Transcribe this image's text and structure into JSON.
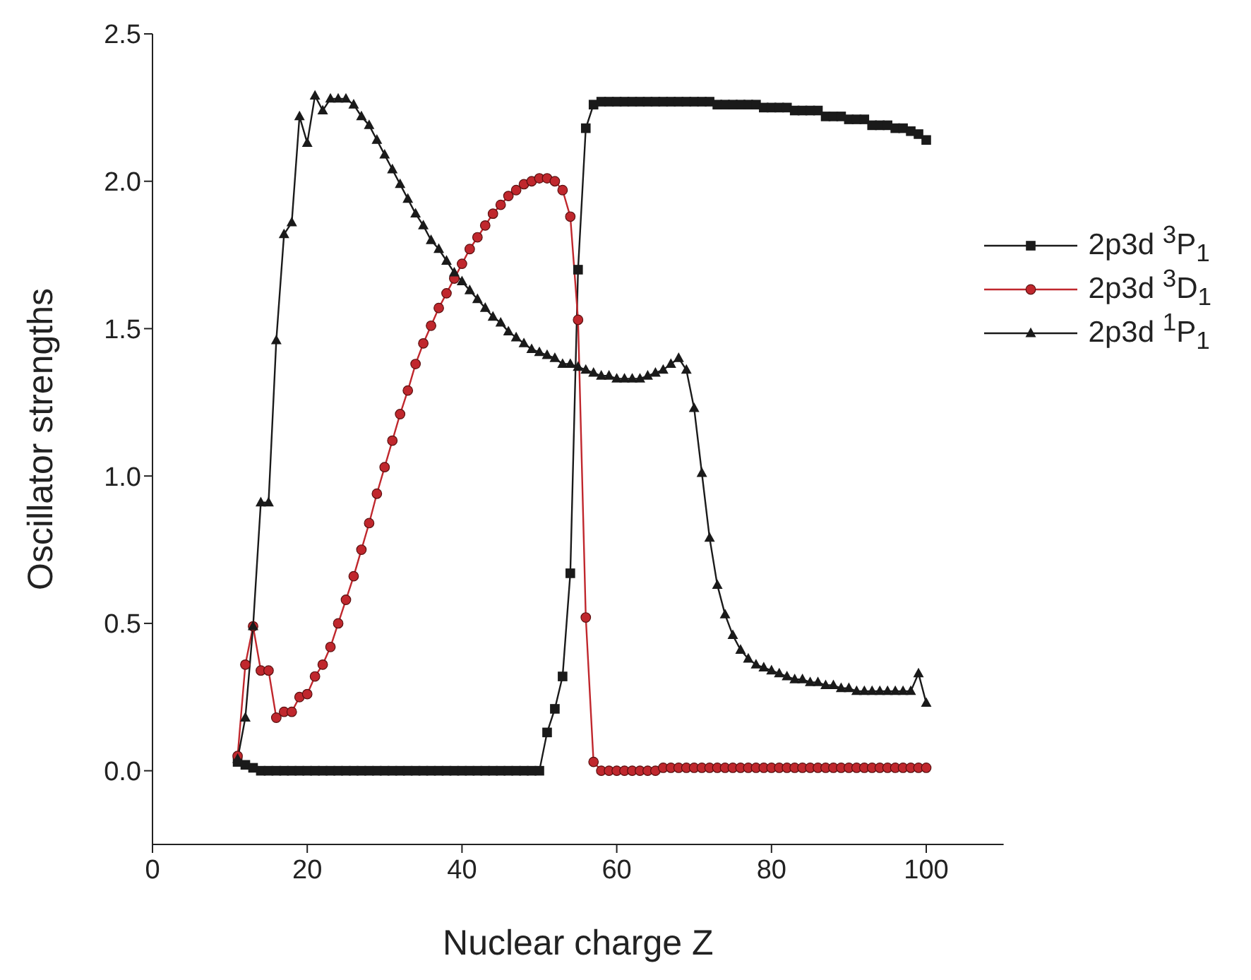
{
  "chart_data": {
    "type": "line",
    "xlabel": "Nuclear charge Z",
    "ylabel": "Oscillator strengths",
    "x": [
      11,
      12,
      13,
      14,
      15,
      16,
      17,
      18,
      19,
      20,
      21,
      22,
      23,
      24,
      25,
      26,
      27,
      28,
      29,
      30,
      31,
      32,
      33,
      34,
      35,
      36,
      37,
      38,
      39,
      40,
      41,
      42,
      43,
      44,
      45,
      46,
      47,
      48,
      49,
      50,
      51,
      52,
      53,
      54,
      55,
      56,
      57,
      58,
      59,
      60,
      61,
      62,
      63,
      64,
      65,
      66,
      67,
      68,
      69,
      70,
      71,
      72,
      73,
      74,
      75,
      76,
      77,
      78,
      79,
      80,
      81,
      82,
      83,
      84,
      85,
      86,
      87,
      88,
      89,
      90,
      91,
      92,
      93,
      94,
      95,
      96,
      97,
      98,
      99,
      100
    ],
    "series": [
      {
        "name": "2p3d $^{3}$P$_{1}$",
        "color": "#1a1a1a",
        "marker": "square",
        "values": [
          0.03,
          0.02,
          0.01,
          0,
          0,
          0,
          0,
          0,
          0,
          0,
          0,
          0,
          0,
          0,
          0,
          0,
          0,
          0,
          0,
          0,
          0,
          0,
          0,
          0,
          0,
          0,
          0,
          0,
          0,
          0,
          0,
          0,
          0,
          0,
          0,
          0,
          0,
          0,
          0,
          0,
          0.13,
          0.21,
          0.32,
          0.67,
          1.7,
          2.18,
          2.26,
          2.27,
          2.27,
          2.27,
          2.27,
          2.27,
          2.27,
          2.27,
          2.27,
          2.27,
          2.27,
          2.27,
          2.27,
          2.27,
          2.27,
          2.27,
          2.26,
          2.26,
          2.26,
          2.26,
          2.26,
          2.26,
          2.25,
          2.25,
          2.25,
          2.25,
          2.24,
          2.24,
          2.24,
          2.24,
          2.22,
          2.22,
          2.22,
          2.21,
          2.21,
          2.21,
          2.19,
          2.19,
          2.19,
          2.18,
          2.18,
          2.17,
          2.16,
          2.14
        ]
      },
      {
        "name": "2p3d $^{3}$D$_{1}$",
        "color": "#c0272d",
        "marker": "circle",
        "values": [
          0.05,
          0.36,
          0.49,
          0.34,
          0.34,
          0.18,
          0.2,
          0.2,
          0.25,
          0.26,
          0.32,
          0.36,
          0.42,
          0.5,
          0.58,
          0.66,
          0.75,
          0.84,
          0.94,
          1.03,
          1.12,
          1.21,
          1.29,
          1.38,
          1.45,
          1.51,
          1.57,
          1.62,
          1.67,
          1.72,
          1.77,
          1.81,
          1.85,
          1.89,
          1.92,
          1.95,
          1.97,
          1.99,
          2,
          2.01,
          2.01,
          2,
          1.97,
          1.88,
          1.53,
          0.52,
          0.03,
          0,
          0,
          0,
          0,
          0,
          0,
          0,
          0,
          0.01,
          0.01,
          0.01,
          0.01,
          0.01,
          0.01,
          0.01,
          0.01,
          0.01,
          0.01,
          0.01,
          0.01,
          0.01,
          0.01,
          0.01,
          0.01,
          0.01,
          0.01,
          0.01,
          0.01,
          0.01,
          0.01,
          0.01,
          0.01,
          0.01,
          0.01,
          0.01,
          0.01,
          0.01,
          0.01,
          0.01,
          0.01,
          0.01,
          0.01,
          0.01
        ]
      },
      {
        "name": "2p3d $^{1}$P$_{1}$",
        "color": "#1a1a1a",
        "marker": "triangle",
        "values": [
          0.04,
          0.18,
          0.49,
          0.91,
          0.91,
          1.46,
          1.82,
          1.86,
          2.22,
          2.13,
          2.29,
          2.24,
          2.28,
          2.28,
          2.28,
          2.26,
          2.22,
          2.19,
          2.14,
          2.09,
          2.04,
          1.99,
          1.94,
          1.89,
          1.85,
          1.8,
          1.77,
          1.73,
          1.69,
          1.66,
          1.63,
          1.6,
          1.57,
          1.54,
          1.52,
          1.49,
          1.47,
          1.45,
          1.43,
          1.42,
          1.41,
          1.4,
          1.38,
          1.38,
          1.37,
          1.36,
          1.35,
          1.34,
          1.34,
          1.33,
          1.33,
          1.33,
          1.33,
          1.34,
          1.35,
          1.36,
          1.38,
          1.4,
          1.36,
          1.23,
          1.01,
          0.79,
          0.63,
          0.53,
          0.46,
          0.41,
          0.38,
          0.36,
          0.35,
          0.34,
          0.33,
          0.32,
          0.31,
          0.31,
          0.3,
          0.3,
          0.29,
          0.29,
          0.28,
          0.28,
          0.27,
          0.27,
          0.27,
          0.27,
          0.27,
          0.27,
          0.27,
          0.27,
          0.33,
          0.23
        ]
      }
    ],
    "xlim": [
      0,
      110
    ],
    "xticks": [
      0,
      20,
      40,
      60,
      80,
      100
    ],
    "ylim": [
      -0.25,
      2.5
    ],
    "yticks": [
      {
        "value": 0,
        "label": "0.0"
      },
      {
        "value": 0.5,
        "label": "0.5"
      },
      {
        "value": 1,
        "label": "1.0"
      },
      {
        "value": 1.5,
        "label": "1.5"
      },
      {
        "value": 2,
        "label": "2.0"
      },
      {
        "value": 2.5,
        "label": "2.5"
      }
    ],
    "legend": "right",
    "grid": false,
    "line_style": "solid"
  }
}
